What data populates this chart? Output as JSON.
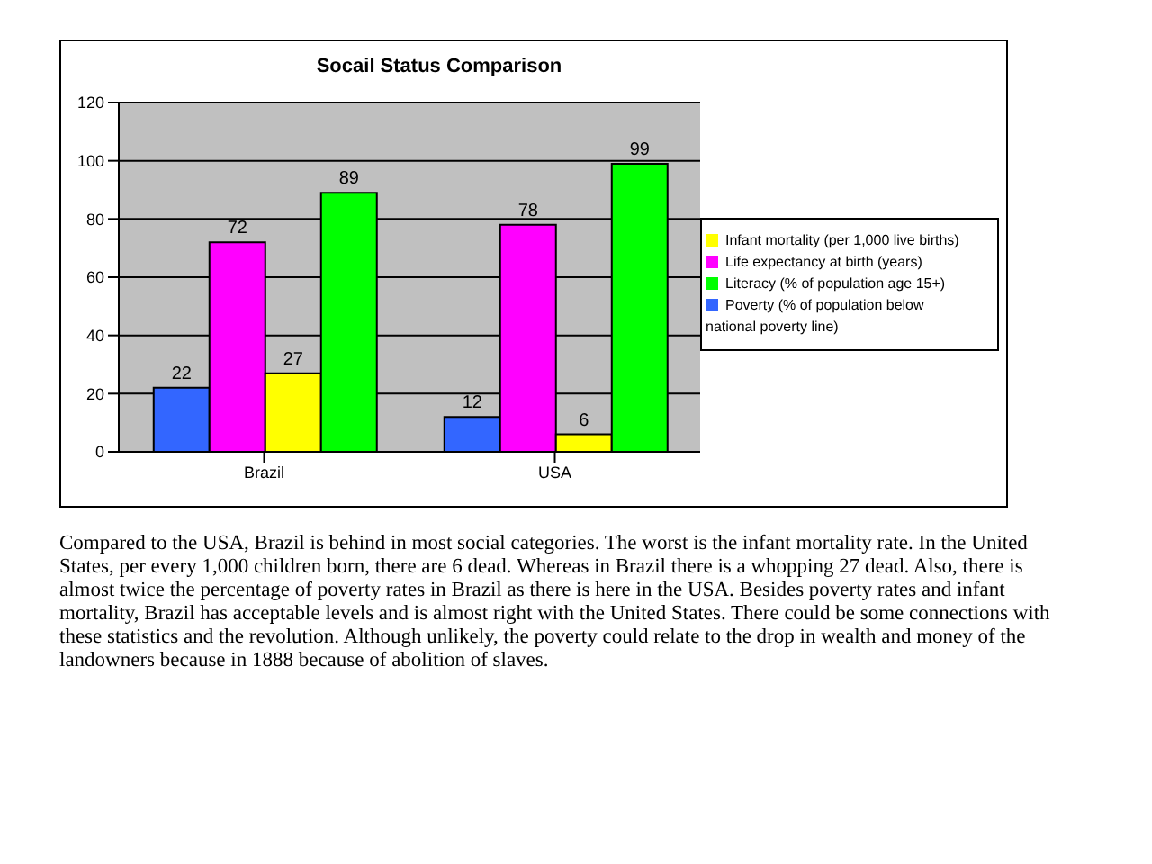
{
  "chart_data": {
    "type": "bar",
    "title": "Socail Status Comparison",
    "categories": [
      "Brazil",
      "USA"
    ],
    "series": [
      {
        "name": "Poverty (% of population below national poverty line)",
        "color": "#3366ff",
        "values": [
          22,
          12
        ]
      },
      {
        "name": "Life expectancy at birth (years)",
        "color": "#ff00ff",
        "values": [
          72,
          78
        ]
      },
      {
        "name": "Infant mortality (per 1,000 live births)",
        "color": "#ffff00",
        "values": [
          27,
          6
        ]
      },
      {
        "name": "Literacy (% of population age 15+)",
        "color": "#00ff00",
        "values": [
          89,
          99
        ]
      }
    ],
    "ylim": [
      0,
      120
    ],
    "yticks": [
      0,
      20,
      40,
      60,
      80,
      100,
      120
    ],
    "grid": "y",
    "legend": "right",
    "data_labels": true,
    "annotations": [
      "Compared to the USA, Brazil is behind in most social categories. The worst is the infant mortality rate. In the United States, per every 1,000 children born, there are 6 dead. Whereas in Brazil there is a whopping 27 dead. Also, there is almost twice the percentage of poverty rates in Brazil as there is here in the USA. Besides poverty rates and infant mortality, Brazil has acceptable levels and is almost right with the United States. There could be some connections with these statistics and the revolution. Although unlikely, the poverty could relate to the drop in wealth and money of the landowners because in 1888 because of abolition of slaves."
    ]
  }
}
